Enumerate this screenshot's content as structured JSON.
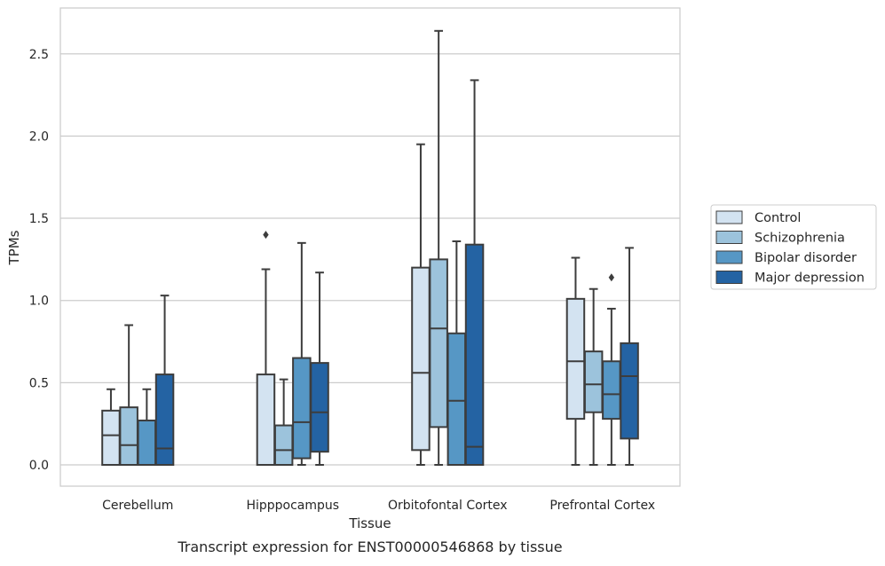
{
  "chart_data": {
    "type": "box",
    "title": "",
    "caption": "Transcript expression for ENST00000546868 by tissue",
    "xlabel": "Tissue",
    "ylabel": "TPMs",
    "ylim": [
      -0.13,
      2.78
    ],
    "yticks": [
      "0.0",
      "0.5",
      "1.0",
      "1.5",
      "2.0",
      "2.5"
    ],
    "ytick_values": [
      0,
      0.5,
      1.0,
      1.5,
      2.0,
      2.5
    ],
    "grid": "horizontal",
    "legend_placement": "right",
    "categories": [
      "Cerebellum",
      "Hipppocampus",
      "Orbitofontal Cortex",
      "Prefrontal Cortex"
    ],
    "series": [
      {
        "name": "Control",
        "color": "#d3e3f1",
        "boxes": [
          {
            "whislo": 0,
            "q1": 0,
            "med": 0.18,
            "q3": 0.33,
            "whishi": 0.46,
            "fliers": []
          },
          {
            "whislo": 0,
            "q1": 0,
            "med": 0,
            "q3": 0.55,
            "whishi": 1.19,
            "fliers": [
              1.4
            ]
          },
          {
            "whislo": 0,
            "q1": 0.09,
            "med": 0.56,
            "q3": 1.2,
            "whishi": 1.95,
            "fliers": []
          },
          {
            "whislo": 0,
            "q1": 0.28,
            "med": 0.63,
            "q3": 1.01,
            "whishi": 1.26,
            "fliers": []
          }
        ]
      },
      {
        "name": "Schizophrenia",
        "color": "#9cc3dc",
        "boxes": [
          {
            "whislo": 0,
            "q1": 0,
            "med": 0.12,
            "q3": 0.35,
            "whishi": 0.85,
            "fliers": []
          },
          {
            "whislo": 0,
            "q1": 0,
            "med": 0.09,
            "q3": 0.24,
            "whishi": 0.52,
            "fliers": []
          },
          {
            "whislo": 0,
            "q1": 0.23,
            "med": 0.83,
            "q3": 1.25,
            "whishi": 2.64,
            "fliers": []
          },
          {
            "whislo": 0,
            "q1": 0.32,
            "med": 0.49,
            "q3": 0.69,
            "whishi": 1.07,
            "fliers": []
          }
        ]
      },
      {
        "name": "Bipolar disorder",
        "color": "#5697c5",
        "boxes": [
          {
            "whislo": 0,
            "q1": 0,
            "med": 0,
            "q3": 0.27,
            "whishi": 0.46,
            "fliers": []
          },
          {
            "whislo": 0,
            "q1": 0.04,
            "med": 0.26,
            "q3": 0.65,
            "whishi": 1.35,
            "fliers": []
          },
          {
            "whislo": 0,
            "q1": 0,
            "med": 0.39,
            "q3": 0.8,
            "whishi": 1.36,
            "fliers": []
          },
          {
            "whislo": 0,
            "q1": 0.28,
            "med": 0.43,
            "q3": 0.63,
            "whishi": 0.95,
            "fliers": [
              1.14
            ]
          }
        ]
      },
      {
        "name": "Major depression",
        "color": "#2463a3",
        "boxes": [
          {
            "whislo": 0,
            "q1": 0,
            "med": 0.1,
            "q3": 0.55,
            "whishi": 1.03,
            "fliers": []
          },
          {
            "whislo": 0,
            "q1": 0.08,
            "med": 0.32,
            "q3": 0.62,
            "whishi": 1.17,
            "fliers": []
          },
          {
            "whislo": 0,
            "q1": 0,
            "med": 0.11,
            "q3": 1.34,
            "whishi": 2.34,
            "fliers": []
          },
          {
            "whislo": 0,
            "q1": 0.16,
            "med": 0.54,
            "q3": 0.74,
            "whishi": 1.32,
            "fliers": []
          }
        ]
      }
    ]
  }
}
